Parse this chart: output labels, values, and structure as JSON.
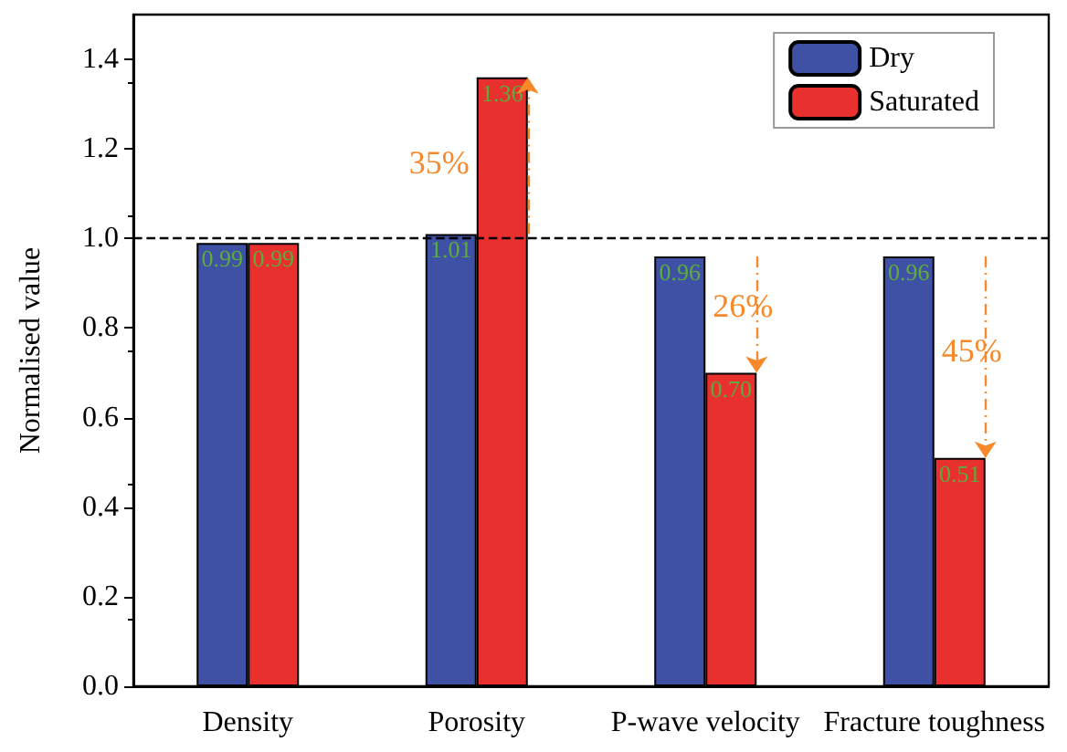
{
  "chart_data": {
    "type": "bar",
    "ylabel": "Normalised value",
    "categories": [
      "Density",
      "Porosity",
      "P-wave velocity",
      "Fracture toughness"
    ],
    "series": [
      {
        "name": "Dry",
        "color": "#3f51a5",
        "values": [
          0.99,
          1.01,
          0.96,
          0.96
        ],
        "value_labels": [
          "0.99",
          "1.01",
          "0.96",
          "0.96"
        ]
      },
      {
        "name": "Saturated",
        "color": "#e8302e",
        "values": [
          0.99,
          1.36,
          0.7,
          0.51
        ],
        "value_labels": [
          "0.99",
          "1.36",
          "0.70",
          "0.51"
        ]
      }
    ],
    "ylim": [
      0,
      1.5
    ],
    "yticks": [
      {
        "value": 0,
        "label": "0.0"
      },
      0.2,
      0.4,
      0.6,
      0.8,
      {
        "value": 1,
        "label": "1.0"
      },
      1.2,
      1.4
    ],
    "ref_lines": [
      {
        "axis": "y",
        "value": 1.0,
        "color": "#000000",
        "line_style": "dashed"
      }
    ],
    "annotations": [
      {
        "text": "35%",
        "x": "Porosity",
        "y": 1.17
      },
      {
        "text": "26%",
        "x": "P-wave velocity",
        "y": 0.85
      },
      {
        "text": "45%",
        "x": "Fracture toughness",
        "y": 0.75
      }
    ],
    "grid": false,
    "legend": "top right"
  }
}
